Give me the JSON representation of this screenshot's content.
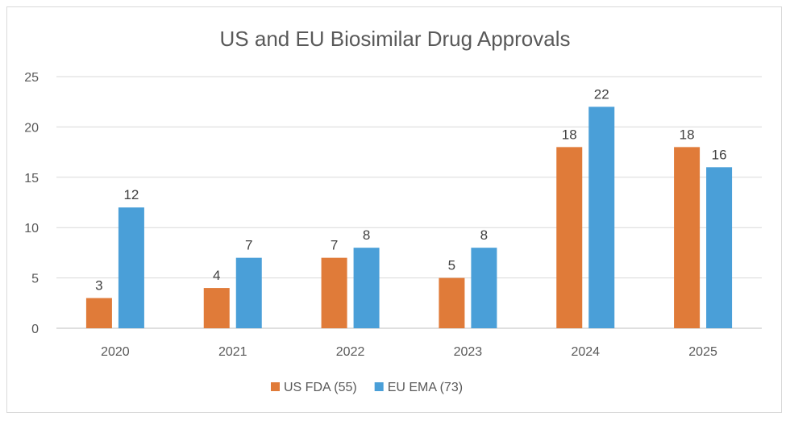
{
  "chart_data": {
    "type": "bar",
    "title": "US and EU Biosimilar Drug Approvals",
    "categories": [
      "2020",
      "2021",
      "2022",
      "2023",
      "2024",
      "2025"
    ],
    "series": [
      {
        "name": "US FDA (55)",
        "values": [
          3,
          4,
          7,
          5,
          18,
          18
        ],
        "color": "#E07B39"
      },
      {
        "name": "EU EMA (73)",
        "values": [
          12,
          7,
          8,
          8,
          22,
          16
        ],
        "color": "#4A9FD8"
      }
    ],
    "ylim": [
      0,
      25
    ],
    "yticks": [
      "0",
      "5",
      "10",
      "15",
      "20",
      "25"
    ],
    "grid": true,
    "legend": "bottom",
    "data_labels": true
  }
}
